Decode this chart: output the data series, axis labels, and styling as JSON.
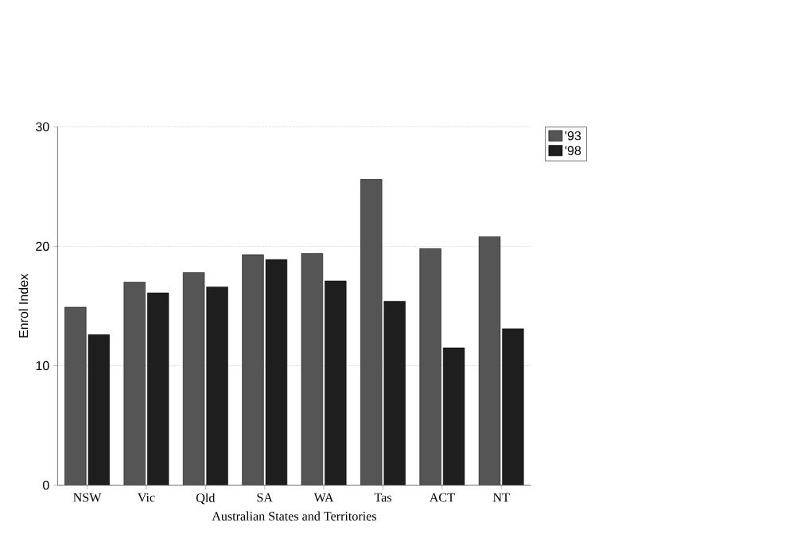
{
  "chart_data": {
    "type": "bar",
    "xlabel": "Australian States and Territories",
    "ylabel": "Enrol Index",
    "categories": [
      "NSW",
      "Vic",
      "Qld",
      "SA",
      "WA",
      "Tas",
      "ACT",
      "NT"
    ],
    "series": [
      {
        "name": "'93",
        "color": "#555555",
        "values": [
          14.9,
          17.0,
          17.8,
          19.3,
          19.4,
          25.6,
          19.8,
          20.8
        ]
      },
      {
        "name": "'98",
        "color": "#1e1e1e",
        "values": [
          12.6,
          16.1,
          16.6,
          18.9,
          17.1,
          15.4,
          11.5,
          13.1
        ]
      }
    ],
    "ylim": [
      0,
      30
    ],
    "yticks": [
      0,
      10,
      20,
      30
    ],
    "grid": "y",
    "legend": "top right"
  }
}
